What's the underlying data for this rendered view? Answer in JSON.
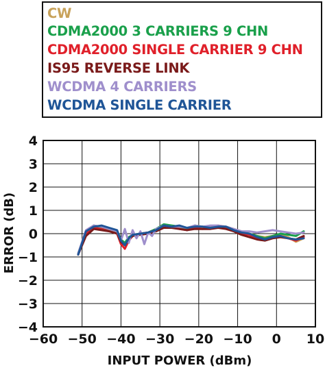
{
  "chart_data": {
    "type": "line",
    "title": "",
    "xlabel": "INPUT POWER (dBm)",
    "ylabel": "ERROR (dB)",
    "xlim": [
      -60,
      10
    ],
    "ylim": [
      -4,
      4
    ],
    "xticks": [
      -60,
      -50,
      -40,
      -30,
      -20,
      -10,
      0,
      10
    ],
    "yticks": [
      -4,
      -3,
      -2,
      -1,
      0,
      1,
      2,
      3,
      4
    ],
    "xtick_labels": [
      "−60",
      "−50",
      "−40",
      "−30",
      "−20",
      "−10",
      "0",
      "10"
    ],
    "ytick_labels": [
      "−4",
      "−3",
      "−2",
      "−1",
      "0",
      "1",
      "2",
      "3",
      "4"
    ],
    "grid": true,
    "legend_position": "top",
    "series": [
      {
        "name": "CW",
        "color": "#c8a25a",
        "x": [
          -51,
          -49,
          -47,
          -45,
          -43,
          -41,
          -40,
          -39,
          -38,
          -37,
          -35,
          -33,
          -31,
          -29,
          -27,
          -25,
          -23,
          -21,
          -19,
          -17,
          -15,
          -13,
          -11,
          -9,
          -7,
          -5,
          -3,
          -1,
          1,
          3,
          5,
          7
        ],
        "y": [
          -0.9,
          0.05,
          0.3,
          0.25,
          0.15,
          0.05,
          -0.3,
          -0.45,
          -0.2,
          -0.05,
          0.0,
          0.05,
          0.15,
          0.35,
          0.3,
          0.25,
          0.2,
          0.3,
          0.25,
          0.3,
          0.35,
          0.3,
          0.2,
          0.1,
          0.0,
          -0.1,
          -0.15,
          -0.1,
          -0.05,
          -0.15,
          -0.35,
          -0.2
        ]
      },
      {
        "name": "CDMA2000 3 CARRIERS 9 CHN",
        "color": "#1aa04b",
        "x": [
          -51,
          -49,
          -47,
          -45,
          -43,
          -41,
          -40,
          -39,
          -38,
          -37,
          -35,
          -33,
          -31,
          -29,
          -27,
          -25,
          -23,
          -21,
          -19,
          -17,
          -15,
          -13,
          -11,
          -9,
          -7,
          -5,
          -3,
          -1,
          1,
          3,
          5,
          7
        ],
        "y": [
          -0.85,
          0.1,
          0.35,
          0.25,
          0.2,
          0.1,
          -0.25,
          -0.4,
          -0.15,
          -0.05,
          0.0,
          0.05,
          0.2,
          0.4,
          0.35,
          0.3,
          0.2,
          0.35,
          0.3,
          0.25,
          0.3,
          0.25,
          0.15,
          0.05,
          0.0,
          -0.1,
          -0.2,
          -0.1,
          0.0,
          -0.05,
          -0.1,
          0.1
        ]
      },
      {
        "name": "CDMA2000 SINGLE CARRIER 9 CHN",
        "color": "#e0202a",
        "x": [
          -51,
          -49,
          -47,
          -45,
          -43,
          -41,
          -40,
          -39,
          -38,
          -37,
          -35,
          -33,
          -31,
          -29,
          -27,
          -25,
          -23,
          -21,
          -19,
          -17,
          -15,
          -13,
          -11,
          -9,
          -7,
          -5,
          -3,
          -1,
          1,
          3,
          5,
          7
        ],
        "y": [
          -0.9,
          0.0,
          0.25,
          0.2,
          0.1,
          0.0,
          -0.45,
          -0.65,
          -0.3,
          -0.1,
          0.0,
          0.05,
          0.15,
          0.3,
          0.3,
          0.2,
          0.15,
          0.25,
          0.2,
          0.25,
          0.3,
          0.25,
          0.15,
          0.0,
          -0.05,
          -0.2,
          -0.25,
          -0.15,
          -0.1,
          -0.2,
          -0.3,
          -0.15
        ]
      },
      {
        "name": "IS95 REVERSE LINK",
        "color": "#7a1a1a",
        "x": [
          -51,
          -49,
          -47,
          -45,
          -43,
          -41,
          -40,
          -39,
          -38,
          -37,
          -35,
          -33,
          -31,
          -29,
          -27,
          -25,
          -23,
          -21,
          -19,
          -17,
          -15,
          -13,
          -11,
          -9,
          -7,
          -5,
          -3,
          -1,
          1,
          3,
          5,
          7
        ],
        "y": [
          -0.9,
          -0.1,
          0.2,
          0.15,
          0.1,
          0.0,
          -0.35,
          -0.5,
          -0.25,
          -0.1,
          -0.05,
          0.0,
          0.1,
          0.25,
          0.25,
          0.2,
          0.15,
          0.2,
          0.2,
          0.2,
          0.25,
          0.2,
          0.1,
          -0.05,
          -0.15,
          -0.25,
          -0.3,
          -0.2,
          -0.15,
          -0.2,
          -0.25,
          -0.1
        ]
      },
      {
        "name": "WCDMA 4 CARRIERS",
        "color": "#9f8fcc",
        "x": [
          -51,
          -49,
          -47,
          -45,
          -43,
          -41,
          -40,
          -39,
          -38,
          -37,
          -36,
          -35,
          -34,
          -33,
          -32,
          -31,
          -29,
          -27,
          -25,
          -23,
          -21,
          -19,
          -17,
          -15,
          -13,
          -11,
          -9,
          -7,
          -5,
          -3,
          -1,
          1,
          3,
          5,
          7
        ],
        "y": [
          -0.85,
          0.15,
          0.35,
          0.3,
          0.2,
          0.1,
          -0.3,
          0.2,
          -0.4,
          0.15,
          -0.2,
          0.1,
          -0.45,
          0.05,
          -0.1,
          0.2,
          0.35,
          0.3,
          0.3,
          0.25,
          0.35,
          0.3,
          0.35,
          0.35,
          0.3,
          0.2,
          0.1,
          0.1,
          0.05,
          0.1,
          0.15,
          0.1,
          0.05,
          0.0,
          0.05
        ]
      },
      {
        "name": "WCDMA SINGLE CARRIER",
        "color": "#1f5597",
        "x": [
          -51,
          -49,
          -47,
          -45,
          -43,
          -41,
          -40,
          -39,
          -38,
          -37,
          -35,
          -33,
          -31,
          -29,
          -27,
          -25,
          -23,
          -21,
          -19,
          -17,
          -15,
          -13,
          -11,
          -9,
          -7,
          -5,
          -3,
          -1,
          1,
          3,
          5,
          7
        ],
        "y": [
          -0.9,
          0.1,
          0.3,
          0.35,
          0.25,
          0.15,
          -0.3,
          -0.5,
          -0.2,
          -0.05,
          0.0,
          0.05,
          0.15,
          0.35,
          0.3,
          0.35,
          0.25,
          0.3,
          0.3,
          0.25,
          0.3,
          0.3,
          0.15,
          0.05,
          0.0,
          -0.15,
          -0.25,
          -0.15,
          -0.1,
          -0.2,
          -0.25,
          -0.2
        ]
      }
    ]
  }
}
